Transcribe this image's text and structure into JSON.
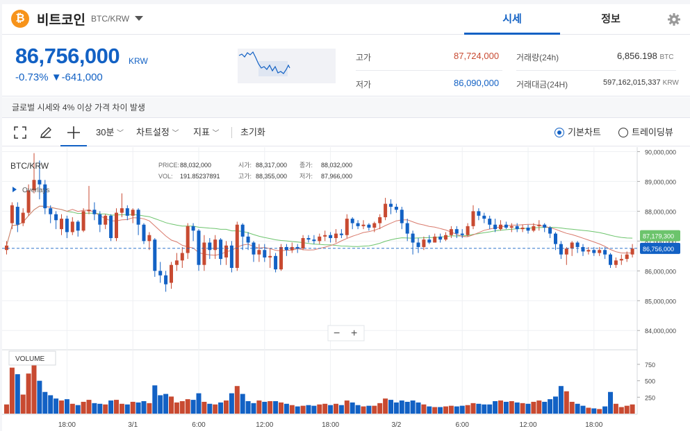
{
  "header": {
    "coin_symbol": "₿",
    "coin_name": "비트코인",
    "pair": "BTC/KRW",
    "tabs": [
      "시세",
      "정보"
    ],
    "icons": {
      "coin": "bitcoin-icon",
      "dropdown": "chevron-down-icon",
      "settings": "gear-icon"
    }
  },
  "ticker": {
    "price": "86,756,000",
    "unit": "KRW",
    "change_pct": "-0.73%",
    "change_arrow": "▼",
    "change_abs": "-641,000",
    "high_label": "고가",
    "high": "87,724,000",
    "low_label": "저가",
    "low": "86,090,000",
    "volume_label": "거래량(24h)",
    "volume": "6,856.198",
    "volume_unit": "BTC",
    "amount_label": "거래대금(24H)",
    "amount": "597,162,015,337",
    "amount_unit": "KRW"
  },
  "notice": "글로벌 시세와 4% 이상 가격 차이 발생",
  "toolbar": {
    "interval": "30분",
    "chart_settings": "차트설정",
    "indicators": "지표",
    "reset": "초기화",
    "basic_chart": "기본차트",
    "tradingview": "트레이딩뷰",
    "icons": {
      "fullscreen": "fullscreen-icon",
      "draw": "pencil-icon",
      "crosshair": "crosshair-icon"
    }
  },
  "legend": {
    "pair": "BTC/KRW",
    "price_label": "PRICE:",
    "price": "88,032,000",
    "vol_label": "VOL:",
    "vol": "191.85237891",
    "open_label": "시가:",
    "open": "88,317,000",
    "high_label": "고가:",
    "high": "88,355,000",
    "close_label": "종가:",
    "close": "88,032,000",
    "low_label": "저가:",
    "low": "87,966,000",
    "overlays": "Overlays",
    "volume_title": "VOLUME"
  },
  "colors": {
    "up": "#c84a31",
    "down": "#1261c4",
    "ma_long": "#6cc46c",
    "ma_short": "#d97a6c",
    "accent": "#1261c4"
  },
  "chart_data": {
    "type": "candlestick",
    "price_axis": {
      "min": 83400000,
      "max": 90150000,
      "ticks": [
        "90,000,000",
        "89,000,000",
        "88,000,000",
        "87,000,000",
        "86,000,000",
        "85,000,000",
        "84,000,000"
      ],
      "tick_values": [
        90000000,
        89000000,
        88000000,
        87000000,
        86000000,
        85000000,
        84000000
      ]
    },
    "volume_axis": {
      "max": 950,
      "ticks": [
        "750",
        "500",
        "250"
      ],
      "tick_values": [
        750,
        500,
        250
      ]
    },
    "x_labels": [
      {
        "i": 11,
        "t": "18:00"
      },
      {
        "i": 23,
        "t": "3/1"
      },
      {
        "i": 35,
        "t": "6:00"
      },
      {
        "i": 47,
        "t": "12:00"
      },
      {
        "i": 59,
        "t": "18:00"
      },
      {
        "i": 71,
        "t": "3/2"
      },
      {
        "i": 83,
        "t": "6:00"
      },
      {
        "i": 95,
        "t": "12:00"
      },
      {
        "i": 107,
        "t": "18:00"
      }
    ],
    "current_price": {
      "label": "86,756,000",
      "value": 86756000
    },
    "ma_label": {
      "label": "87,179,300",
      "value": 87179300
    },
    "candles": [
      {
        "o": 86.7,
        "c": 86.85,
        "h": 87.0,
        "l": 86.55,
        "v": 140
      },
      {
        "o": 87.6,
        "c": 88.2,
        "h": 88.3,
        "l": 87.4,
        "v": 700
      },
      {
        "o": 88.15,
        "c": 87.55,
        "h": 88.3,
        "l": 87.3,
        "v": 600
      },
      {
        "o": 87.6,
        "c": 87.95,
        "h": 88.1,
        "l": 87.5,
        "v": 290
      },
      {
        "o": 87.95,
        "c": 88.7,
        "h": 88.9,
        "l": 87.85,
        "v": 610
      },
      {
        "o": 88.7,
        "c": 89.05,
        "h": 89.95,
        "l": 88.6,
        "v": 850
      },
      {
        "o": 89.05,
        "c": 88.9,
        "h": 89.7,
        "l": 88.4,
        "v": 500
      },
      {
        "o": 88.9,
        "c": 88.1,
        "h": 89.05,
        "l": 87.9,
        "v": 330
      },
      {
        "o": 88.1,
        "c": 87.9,
        "h": 88.2,
        "l": 87.6,
        "v": 280
      },
      {
        "o": 87.9,
        "c": 87.7,
        "h": 88.0,
        "l": 87.4,
        "v": 230
      },
      {
        "o": 87.4,
        "c": 87.75,
        "h": 87.9,
        "l": 87.2,
        "v": 200
      },
      {
        "o": 87.75,
        "c": 87.3,
        "h": 87.85,
        "l": 87.1,
        "v": 220
      },
      {
        "o": 87.3,
        "c": 87.65,
        "h": 87.8,
        "l": 87.2,
        "v": 150
      },
      {
        "o": 87.65,
        "c": 87.35,
        "h": 87.7,
        "l": 87.15,
        "v": 130
      },
      {
        "o": 87.35,
        "c": 88.0,
        "h": 88.1,
        "l": 87.3,
        "v": 180
      },
      {
        "o": 88.0,
        "c": 88.05,
        "h": 88.85,
        "l": 87.9,
        "v": 210
      },
      {
        "o": 88.05,
        "c": 87.9,
        "h": 88.3,
        "l": 87.7,
        "v": 160
      },
      {
        "o": 87.9,
        "c": 87.55,
        "h": 88.0,
        "l": 87.3,
        "v": 150
      },
      {
        "o": 87.55,
        "c": 87.85,
        "h": 87.9,
        "l": 87.4,
        "v": 140
      },
      {
        "o": 87.85,
        "c": 87.1,
        "h": 87.9,
        "l": 87.0,
        "v": 200
      },
      {
        "o": 87.1,
        "c": 87.95,
        "h": 88.1,
        "l": 87.0,
        "v": 210
      },
      {
        "o": 87.95,
        "c": 88.1,
        "h": 88.6,
        "l": 87.8,
        "v": 150
      },
      {
        "o": 88.1,
        "c": 87.85,
        "h": 88.2,
        "l": 87.7,
        "v": 140
      },
      {
        "o": 87.85,
        "c": 88.05,
        "h": 88.1,
        "l": 87.6,
        "v": 180
      },
      {
        "o": 88.05,
        "c": 87.55,
        "h": 88.1,
        "l": 87.2,
        "v": 170
      },
      {
        "o": 87.55,
        "c": 87.0,
        "h": 87.6,
        "l": 86.9,
        "v": 190
      },
      {
        "o": 87.0,
        "c": 87.2,
        "h": 87.3,
        "l": 86.7,
        "v": 160
      },
      {
        "o": 87.05,
        "c": 86.0,
        "h": 87.1,
        "l": 85.8,
        "v": 430
      },
      {
        "o": 86.0,
        "c": 85.85,
        "h": 86.3,
        "l": 85.6,
        "v": 280
      },
      {
        "o": 85.85,
        "c": 85.55,
        "h": 86.0,
        "l": 85.3,
        "v": 300
      },
      {
        "o": 85.6,
        "c": 86.2,
        "h": 86.3,
        "l": 85.4,
        "v": 260
      },
      {
        "o": 86.2,
        "c": 86.35,
        "h": 86.6,
        "l": 86.0,
        "v": 170
      },
      {
        "o": 86.35,
        "c": 86.6,
        "h": 86.8,
        "l": 86.1,
        "v": 190
      },
      {
        "o": 86.6,
        "c": 87.5,
        "h": 87.6,
        "l": 86.4,
        "v": 220
      },
      {
        "o": 87.5,
        "c": 87.35,
        "h": 87.6,
        "l": 87.0,
        "v": 210
      },
      {
        "o": 87.35,
        "c": 86.2,
        "h": 87.4,
        "l": 86.0,
        "v": 310
      },
      {
        "o": 86.2,
        "c": 86.95,
        "h": 87.2,
        "l": 86.0,
        "v": 180
      },
      {
        "o": 86.95,
        "c": 86.7,
        "h": 87.1,
        "l": 86.4,
        "v": 150
      },
      {
        "o": 86.7,
        "c": 87.05,
        "h": 87.2,
        "l": 86.4,
        "v": 140
      },
      {
        "o": 87.05,
        "c": 86.4,
        "h": 87.1,
        "l": 86.2,
        "v": 170
      },
      {
        "o": 86.45,
        "c": 86.85,
        "h": 87.0,
        "l": 86.2,
        "v": 200
      },
      {
        "o": 86.85,
        "c": 86.1,
        "h": 87.0,
        "l": 85.95,
        "v": 310
      },
      {
        "o": 86.1,
        "c": 87.55,
        "h": 87.65,
        "l": 86.0,
        "v": 420
      },
      {
        "o": 87.55,
        "c": 87.15,
        "h": 87.6,
        "l": 86.7,
        "v": 300
      },
      {
        "o": 87.15,
        "c": 86.95,
        "h": 87.3,
        "l": 86.7,
        "v": 190
      },
      {
        "o": 86.95,
        "c": 86.55,
        "h": 87.0,
        "l": 86.3,
        "v": 160
      },
      {
        "o": 86.55,
        "c": 86.7,
        "h": 86.9,
        "l": 86.3,
        "v": 200
      },
      {
        "o": 86.7,
        "c": 86.45,
        "h": 86.9,
        "l": 86.3,
        "v": 180
      },
      {
        "o": 86.45,
        "c": 86.5,
        "h": 86.75,
        "l": 86.1,
        "v": 190
      },
      {
        "o": 86.5,
        "c": 86.05,
        "h": 86.6,
        "l": 85.95,
        "v": 190
      },
      {
        "o": 86.05,
        "c": 86.8,
        "h": 86.9,
        "l": 86.0,
        "v": 170
      },
      {
        "o": 86.8,
        "c": 86.7,
        "h": 86.9,
        "l": 86.5,
        "v": 150
      },
      {
        "o": 86.7,
        "c": 86.8,
        "h": 86.95,
        "l": 86.6,
        "v": 130
      },
      {
        "o": 86.8,
        "c": 86.75,
        "h": 86.9,
        "l": 86.6,
        "v": 110
      },
      {
        "o": 86.75,
        "c": 87.1,
        "h": 87.2,
        "l": 86.7,
        "v": 120
      },
      {
        "o": 87.1,
        "c": 87.05,
        "h": 87.2,
        "l": 86.95,
        "v": 130
      },
      {
        "o": 87.05,
        "c": 87.0,
        "h": 87.2,
        "l": 86.9,
        "v": 120
      },
      {
        "o": 87.0,
        "c": 87.15,
        "h": 87.25,
        "l": 86.9,
        "v": 140
      },
      {
        "o": 87.15,
        "c": 87.2,
        "h": 87.35,
        "l": 87.0,
        "v": 150
      },
      {
        "o": 87.2,
        "c": 87.1,
        "h": 87.3,
        "l": 86.95,
        "v": 130
      },
      {
        "o": 87.1,
        "c": 87.25,
        "h": 87.4,
        "l": 86.95,
        "v": 150
      },
      {
        "o": 87.25,
        "c": 87.2,
        "h": 87.4,
        "l": 87.1,
        "v": 130
      },
      {
        "o": 87.2,
        "c": 87.75,
        "h": 87.9,
        "l": 87.1,
        "v": 200
      },
      {
        "o": 87.75,
        "c": 87.6,
        "h": 87.8,
        "l": 87.4,
        "v": 170
      },
      {
        "o": 87.6,
        "c": 87.5,
        "h": 87.7,
        "l": 87.4,
        "v": 130
      },
      {
        "o": 87.5,
        "c": 87.55,
        "h": 87.7,
        "l": 87.4,
        "v": 110
      },
      {
        "o": 87.55,
        "c": 87.45,
        "h": 87.6,
        "l": 87.35,
        "v": 120
      },
      {
        "o": 87.45,
        "c": 87.6,
        "h": 87.65,
        "l": 87.3,
        "v": 120
      },
      {
        "o": 87.6,
        "c": 87.8,
        "h": 87.9,
        "l": 87.4,
        "v": 160
      },
      {
        "o": 87.8,
        "c": 88.25,
        "h": 88.45,
        "l": 87.7,
        "v": 230
      },
      {
        "o": 88.25,
        "c": 88.15,
        "h": 88.4,
        "l": 87.9,
        "v": 210
      },
      {
        "o": 88.15,
        "c": 88.05,
        "h": 88.25,
        "l": 87.95,
        "v": 170
      },
      {
        "o": 88.05,
        "c": 87.6,
        "h": 88.15,
        "l": 87.4,
        "v": 200
      },
      {
        "o": 87.6,
        "c": 87.25,
        "h": 87.75,
        "l": 87.0,
        "v": 180
      },
      {
        "o": 87.25,
        "c": 86.95,
        "h": 87.35,
        "l": 86.55,
        "v": 200
      },
      {
        "o": 86.95,
        "c": 86.8,
        "h": 87.1,
        "l": 86.6,
        "v": 170
      },
      {
        "o": 86.8,
        "c": 87.05,
        "h": 87.15,
        "l": 86.7,
        "v": 140
      },
      {
        "o": 87.05,
        "c": 86.95,
        "h": 87.2,
        "l": 86.9,
        "v": 110
      },
      {
        "o": 86.95,
        "c": 87.15,
        "h": 87.25,
        "l": 86.95,
        "v": 100
      },
      {
        "o": 87.15,
        "c": 87.05,
        "h": 87.25,
        "l": 86.95,
        "v": 100
      },
      {
        "o": 87.05,
        "c": 87.2,
        "h": 87.3,
        "l": 87.0,
        "v": 110
      },
      {
        "o": 87.2,
        "c": 87.4,
        "h": 87.5,
        "l": 87.1,
        "v": 120
      },
      {
        "o": 87.4,
        "c": 87.25,
        "h": 87.5,
        "l": 87.1,
        "v": 110
      },
      {
        "o": 87.25,
        "c": 87.2,
        "h": 87.4,
        "l": 87.1,
        "v": 120
      },
      {
        "o": 87.2,
        "c": 87.5,
        "h": 87.6,
        "l": 87.15,
        "v": 130
      },
      {
        "o": 87.5,
        "c": 88.0,
        "h": 88.2,
        "l": 87.4,
        "v": 160
      },
      {
        "o": 88.0,
        "c": 87.85,
        "h": 88.1,
        "l": 87.7,
        "v": 150
      },
      {
        "o": 87.85,
        "c": 87.75,
        "h": 87.95,
        "l": 87.6,
        "v": 140
      },
      {
        "o": 87.75,
        "c": 87.55,
        "h": 87.85,
        "l": 87.4,
        "v": 140
      },
      {
        "o": 87.55,
        "c": 87.4,
        "h": 87.75,
        "l": 87.3,
        "v": 190
      },
      {
        "o": 87.4,
        "c": 87.55,
        "h": 87.7,
        "l": 87.35,
        "v": 200
      },
      {
        "o": 87.55,
        "c": 87.45,
        "h": 87.65,
        "l": 87.4,
        "v": 180
      },
      {
        "o": 87.45,
        "c": 87.5,
        "h": 87.6,
        "l": 87.3,
        "v": 190
      },
      {
        "o": 87.5,
        "c": 87.4,
        "h": 87.6,
        "l": 87.3,
        "v": 170
      },
      {
        "o": 87.4,
        "c": 87.45,
        "h": 87.55,
        "l": 87.3,
        "v": 160
      },
      {
        "o": 87.45,
        "c": 87.35,
        "h": 87.55,
        "l": 87.25,
        "v": 150
      },
      {
        "o": 87.35,
        "c": 87.5,
        "h": 87.6,
        "l": 87.3,
        "v": 180
      },
      {
        "o": 87.5,
        "c": 87.55,
        "h": 87.7,
        "l": 87.35,
        "v": 200
      },
      {
        "o": 87.55,
        "c": 87.45,
        "h": 87.6,
        "l": 87.3,
        "v": 180
      },
      {
        "o": 87.45,
        "c": 87.25,
        "h": 87.5,
        "l": 87.1,
        "v": 220
      },
      {
        "o": 87.25,
        "c": 86.9,
        "h": 87.3,
        "l": 86.7,
        "v": 260
      },
      {
        "o": 86.9,
        "c": 86.55,
        "h": 87.0,
        "l": 86.4,
        "v": 420
      },
      {
        "o": 86.55,
        "c": 86.75,
        "h": 86.8,
        "l": 86.2,
        "v": 340
      },
      {
        "o": 86.75,
        "c": 86.95,
        "h": 87.0,
        "l": 86.5,
        "v": 180
      },
      {
        "o": 86.95,
        "c": 86.8,
        "h": 87.0,
        "l": 86.6,
        "v": 150
      },
      {
        "o": 86.8,
        "c": 86.65,
        "h": 86.9,
        "l": 86.5,
        "v": 120
      },
      {
        "o": 86.65,
        "c": 86.7,
        "h": 86.8,
        "l": 86.55,
        "v": 90
      },
      {
        "o": 86.7,
        "c": 86.6,
        "h": 86.8,
        "l": 86.5,
        "v": 80
      },
      {
        "o": 86.6,
        "c": 86.7,
        "h": 86.8,
        "l": 86.5,
        "v": 70
      },
      {
        "o": 86.7,
        "c": 86.55,
        "h": 86.8,
        "l": 86.4,
        "v": 110
      },
      {
        "o": 86.55,
        "c": 86.2,
        "h": 86.6,
        "l": 86.1,
        "v": 330
      },
      {
        "o": 86.2,
        "c": 86.35,
        "h": 86.45,
        "l": 86.1,
        "v": 150
      },
      {
        "o": 86.35,
        "c": 86.4,
        "h": 86.55,
        "l": 86.2,
        "v": 100
      },
      {
        "o": 86.4,
        "c": 86.55,
        "h": 86.65,
        "l": 86.3,
        "v": 120
      },
      {
        "o": 86.55,
        "c": 86.75,
        "h": 86.9,
        "l": 86.45,
        "v": 140
      }
    ]
  }
}
